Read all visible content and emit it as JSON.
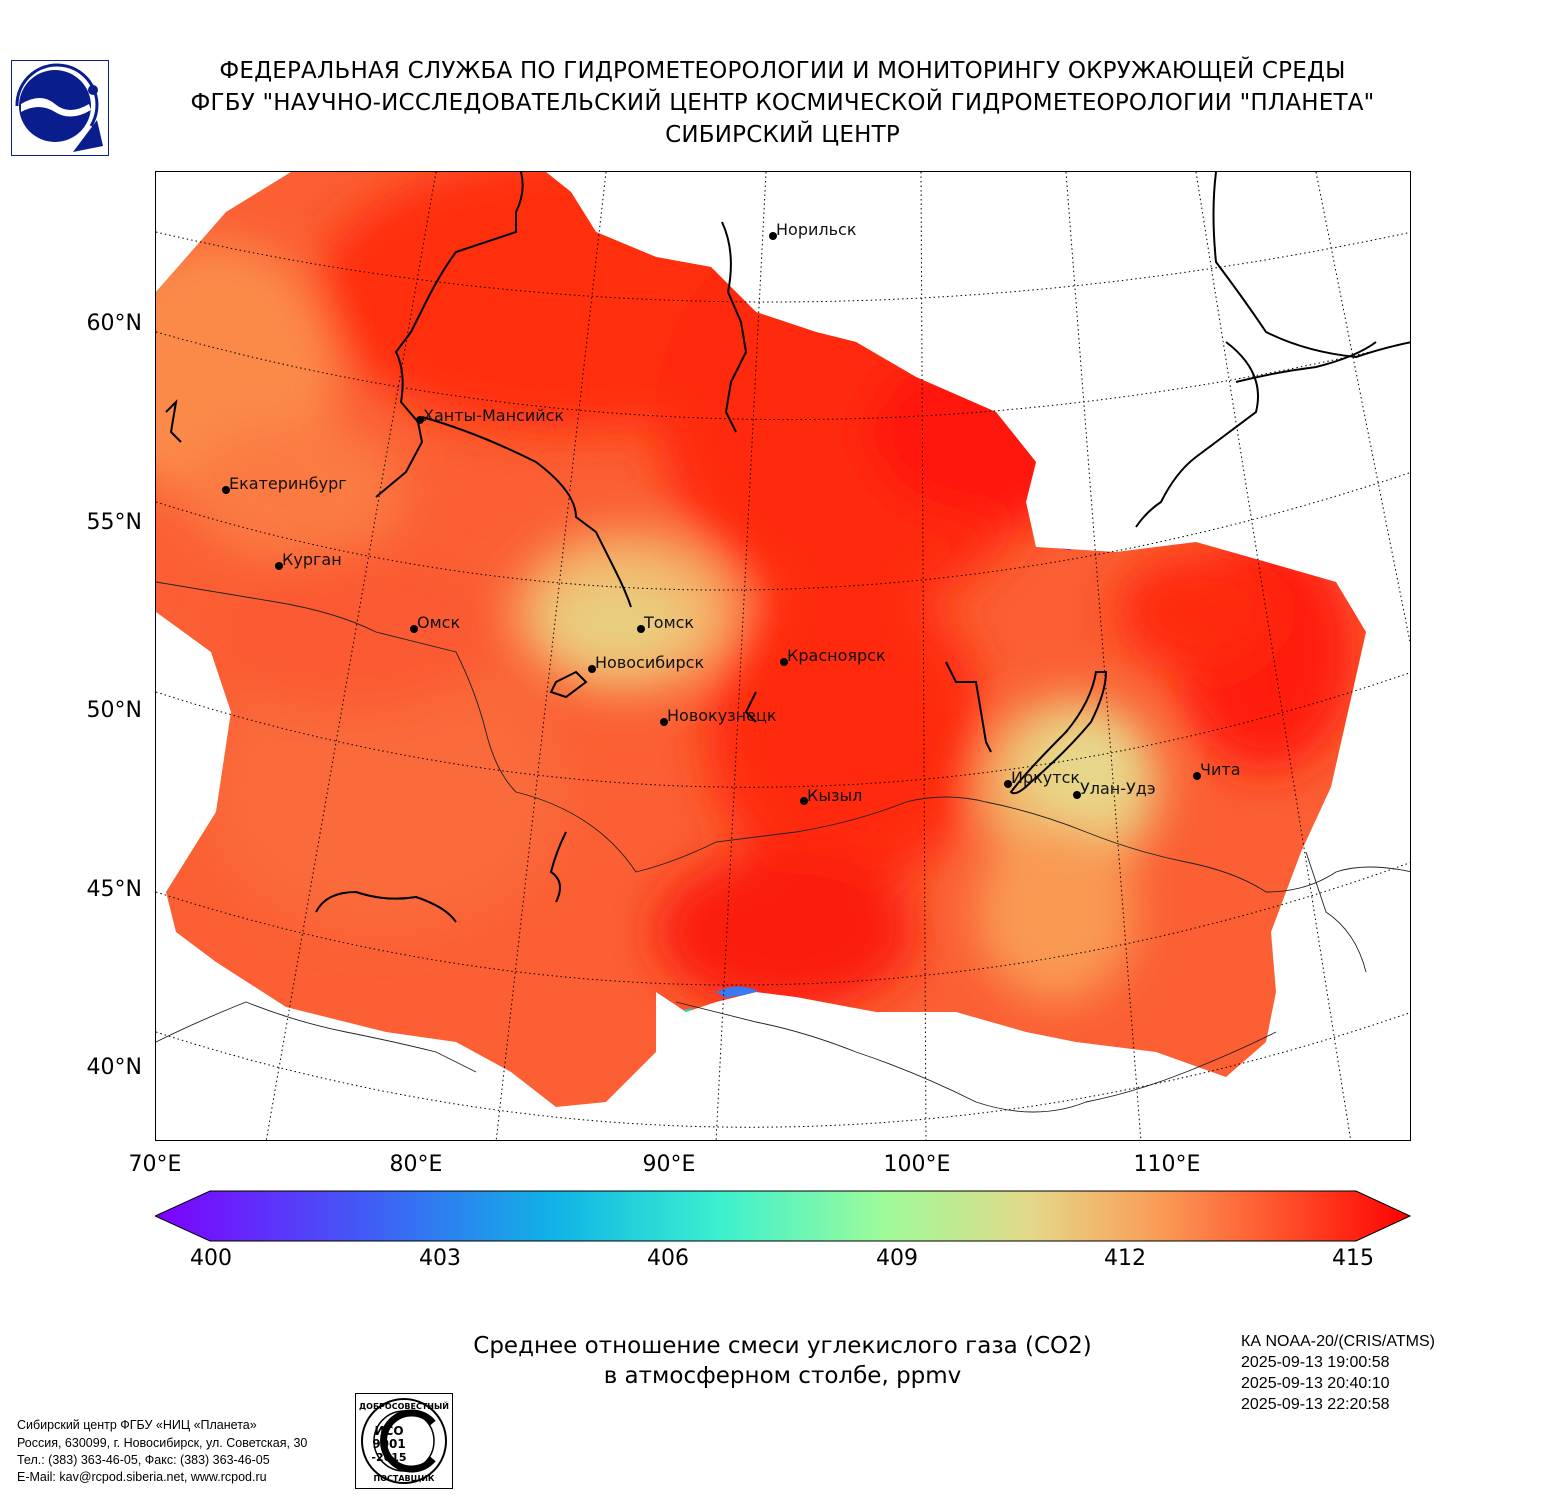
{
  "header": {
    "line1": "ФЕДЕРАЛЬНАЯ СЛУЖБА ПО ГИДРОМЕТЕОРОЛОГИИ И МОНИТОРИНГУ ОКРУЖАЮЩЕЙ СРЕДЫ",
    "line2": "ФГБУ \"НАУЧНО-ИССЛЕДОВАТЕЛЬСКИЙ ЦЕНТР КОСМИЧЕСКОЙ ГИДРОМЕТЕОРОЛОГИИ \"ПЛАНЕТА\"",
    "line3": "СИБИРСКИЙ ЦЕНТР"
  },
  "map": {
    "lat_labels": [
      "60°N",
      "55°N",
      "50°N",
      "45°N",
      "40°N"
    ],
    "lon_labels": [
      "70°E",
      "80°E",
      "90°E",
      "100°E",
      "110°E"
    ],
    "cities": [
      {
        "name": "Норильск"
      },
      {
        "name": "Ханты-Мансийск"
      },
      {
        "name": "Екатеринбург"
      },
      {
        "name": "Курган"
      },
      {
        "name": "Омск"
      },
      {
        "name": "Томск"
      },
      {
        "name": "Новосибирск"
      },
      {
        "name": "Красноярск"
      },
      {
        "name": "Новокузнецк"
      },
      {
        "name": "Иркутск"
      },
      {
        "name": "Улан-Удэ"
      },
      {
        "name": "Чита"
      },
      {
        "name": "Кызыл"
      }
    ]
  },
  "colorbar": {
    "ticks": [
      "400",
      "403",
      "406",
      "409",
      "412",
      "415"
    ],
    "min": 400,
    "max": 415
  },
  "caption": {
    "line1": "Среднее отношение смеси углекислого газа (CO2)",
    "line2": "в атмосферном столбе, ppmv"
  },
  "satellite": {
    "name": "КА NOAA-20/(CRIS/ATMS)",
    "time1": "2025-09-13 19:00:58",
    "time2": "2025-09-13 20:40:10",
    "time3": "2025-09-13 22:20:58"
  },
  "footer": {
    "line1": "Сибирский центр ФГБУ «НИЦ «Планета»",
    "line2": "Россия, 630099, г. Новосибирск, ул. Советская, 30",
    "line3": "Тел.: (383) 363-46-05, Факс: (383) 363-46-05",
    "line4": "E-Mail: kav@rcpod.siberia.net, www.rcpod.ru"
  },
  "iso_badge": {
    "top_text": "ДОБРОСОВЕСТНЫЙ",
    "line1": "ИСО",
    "line2": "9001",
    "line3": "-2015",
    "bottom_text": "ПОСТАВЩИК"
  }
}
